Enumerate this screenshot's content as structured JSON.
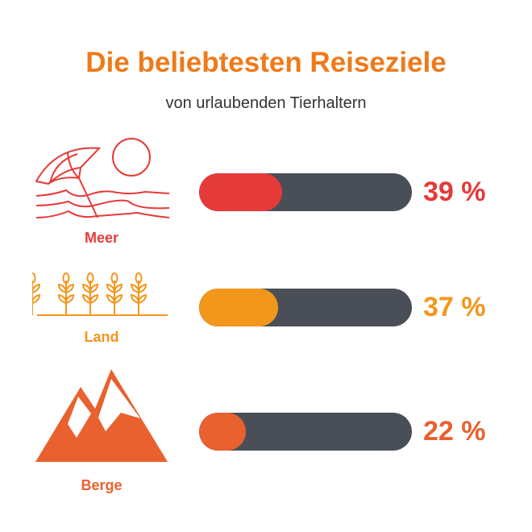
{
  "title": "Die beliebtesten Reiseziele",
  "subtitle": "von urlaubenden Tierhaltern",
  "chart_data": {
    "type": "bar",
    "orientation": "horizontal",
    "title": "Die beliebtesten Reiseziele",
    "subtitle": "von urlaubenden Tierhaltern",
    "categories": [
      "Meer",
      "Land",
      "Berge"
    ],
    "values": [
      39,
      37,
      22
    ],
    "value_labels": [
      "39 %",
      "37 %",
      "22 %"
    ],
    "unit": "%",
    "xlim": [
      0,
      100
    ],
    "colors": [
      "#e53a3a",
      "#f3961c",
      "#e8612f"
    ],
    "track_color": "#4a4f57",
    "icons": [
      "beach-umbrella-icon",
      "wheat-field-icon",
      "mountain-icon"
    ]
  }
}
